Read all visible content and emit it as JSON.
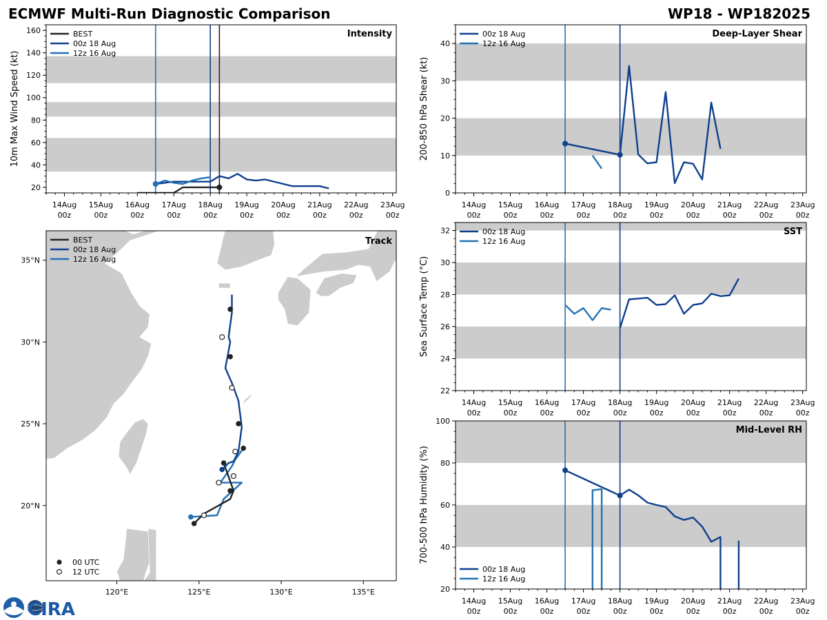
{
  "header": {
    "title_left": "ECMWF Multi-Run Diagnostic Comparison",
    "title_right": "WP18 - WP182025"
  },
  "logo": {
    "text": "CIRA",
    "emblem": "noaa-seal"
  },
  "colors": {
    "BEST": "#222222",
    "00z 18 Aug": "#0d3f8c",
    "12z 16 Aug": "#2171b5",
    "band": "#cccccc",
    "land": "#cccccc"
  },
  "time_axis": {
    "xlim": [
      -0.5,
      9.1
    ],
    "ticks": [
      {
        "x": 0,
        "line1": "14Aug",
        "line2": "00z"
      },
      {
        "x": 1,
        "line1": "15Aug",
        "line2": "00z"
      },
      {
        "x": 2,
        "line1": "16Aug",
        "line2": "00z"
      },
      {
        "x": 3,
        "line1": "17Aug",
        "line2": "00z"
      },
      {
        "x": 4,
        "line1": "18Aug",
        "line2": "00z"
      },
      {
        "x": 5,
        "line1": "19Aug",
        "line2": "00z"
      },
      {
        "x": 6,
        "line1": "20Aug",
        "line2": "00z"
      },
      {
        "x": 7,
        "line1": "21Aug",
        "line2": "00z"
      },
      {
        "x": 8,
        "line1": "22Aug",
        "line2": "00z"
      },
      {
        "x": 9,
        "line1": "23Aug",
        "line2": "00z"
      }
    ]
  },
  "chart_data": [
    {
      "id": "intensity",
      "type": "line",
      "title": "Intensity",
      "ylabel": "10m Max Wind Speed (kt)",
      "ylim": [
        15,
        165
      ],
      "yticks": [
        20,
        40,
        60,
        80,
        100,
        120,
        140,
        160
      ],
      "bands": [
        [
          34,
          64
        ],
        [
          83,
          96
        ],
        [
          113,
          137
        ]
      ],
      "vlines": [
        {
          "series": "12z 16 Aug",
          "x": 2.5
        },
        {
          "series": "00z 18 Aug",
          "x": 4.0
        },
        {
          "series": "BEST",
          "x": 4.25
        }
      ],
      "legend": [
        "BEST",
        "00z 18 Aug",
        "12z 16 Aug"
      ],
      "series": [
        {
          "name": "BEST",
          "x": [
            2.0,
            3.0,
            3.25,
            4.25
          ],
          "y": [
            15,
            15,
            20,
            20
          ],
          "marker_end": true
        },
        {
          "name": "00z 18 Aug",
          "x": [
            2.5,
            3.0,
            3.5,
            4.0,
            4.25,
            4.5,
            4.75,
            5.0,
            5.25,
            5.5,
            6.0,
            6.25,
            6.5,
            7.0,
            7.25
          ],
          "y": [
            23,
            25,
            25,
            25,
            30,
            28,
            32,
            27,
            26,
            27,
            23,
            21,
            21,
            21,
            19
          ],
          "marker_start": true
        },
        {
          "name": "12z 16 Aug",
          "x": [
            2.5,
            2.75,
            3.0,
            3.25,
            3.5,
            3.75,
            4.0
          ],
          "y": [
            23,
            26,
            24,
            23,
            26,
            28,
            29
          ],
          "marker_start": true
        }
      ]
    },
    {
      "id": "shear",
      "type": "line",
      "title": "Deep-Layer Shear",
      "ylabel": "200-850 hPa Shear (kt)",
      "ylim": [
        0,
        45
      ],
      "yticks": [
        0,
        10,
        20,
        30,
        40
      ],
      "bands": [
        [
          10,
          20
        ],
        [
          30,
          40
        ]
      ],
      "vlines": [
        {
          "series": "12z 16 Aug",
          "x": 2.5
        },
        {
          "series": "00z 18 Aug",
          "x": 4.0
        }
      ],
      "legend": [
        "00z 18 Aug",
        "12z 16 Aug"
      ],
      "series": [
        {
          "name": "00z 18 Aug",
          "x": [
            2.5,
            4.0,
            4.25,
            4.5,
            4.75,
            5.0,
            5.25,
            5.5,
            5.75,
            6.0,
            6.25,
            6.5,
            6.75
          ],
          "y": [
            13.2,
            10.2,
            34,
            10.3,
            7.9,
            8.2,
            27,
            2.6,
            8.2,
            7.8,
            3.6,
            24.2,
            11.8
          ],
          "marker_start": true,
          "marker_at": 4.0
        },
        {
          "name": "12z 16 Aug",
          "x": [
            3.25,
            3.5
          ],
          "y": [
            10,
            6.5
          ]
        }
      ]
    },
    {
      "id": "sst",
      "type": "line",
      "title": "SST",
      "ylabel": "Sea Surface Temp (°C)",
      "ylim": [
        22,
        32.5
      ],
      "yticks": [
        22,
        24,
        26,
        28,
        30,
        32
      ],
      "bands": [
        [
          24,
          26
        ],
        [
          28,
          30
        ],
        [
          32,
          32.5
        ]
      ],
      "vlines": [
        {
          "series": "12z 16 Aug",
          "x": 2.5
        },
        {
          "series": "00z 18 Aug",
          "x": 4.0
        }
      ],
      "legend": [
        "00z 18 Aug",
        "12z 16 Aug"
      ],
      "series": [
        {
          "name": "00z 18 Aug",
          "x": [
            4.0,
            4.25,
            4.5,
            4.75,
            5.0,
            5.25,
            5.5,
            5.75,
            6.0,
            6.25,
            6.5,
            6.75,
            7.0,
            7.25
          ],
          "y": [
            25.9,
            27.7,
            27.75,
            27.8,
            27.35,
            27.4,
            27.95,
            26.8,
            27.35,
            27.45,
            28.05,
            27.9,
            27.95,
            29.0
          ]
        },
        {
          "name": "12z 16 Aug",
          "x": [
            2.5,
            2.75,
            3.0,
            3.25,
            3.5,
            3.75
          ],
          "y": [
            27.35,
            26.8,
            27.15,
            26.4,
            27.15,
            27.05
          ]
        }
      ]
    },
    {
      "id": "rh",
      "type": "line",
      "title": "Mid-Level RH",
      "ylabel": "700-500 hPa Humidity (%)",
      "ylim": [
        20,
        100
      ],
      "yticks": [
        20,
        40,
        60,
        80,
        100
      ],
      "bands": [
        [
          40,
          60
        ],
        [
          80,
          100
        ]
      ],
      "vlines": [
        {
          "series": "12z 16 Aug",
          "x": 2.5
        },
        {
          "series": "00z 18 Aug",
          "x": 4.0
        }
      ],
      "legend": [
        "00z 18 Aug",
        "12z 16 Aug"
      ],
      "series": [
        {
          "name": "00z 18 Aug",
          "x": [
            2.5,
            4.0,
            4.25,
            4.5,
            4.75,
            5.0,
            5.25,
            5.5,
            5.75,
            6.0,
            6.25,
            6.5,
            6.75,
            6.75,
            null,
            7.25,
            7.25
          ],
          "y": [
            76.5,
            64.5,
            67.3,
            64.6,
            61.1,
            60,
            59,
            54.6,
            52.9,
            54,
            49.7,
            42.5,
            44.8,
            20,
            null,
            43,
            20
          ],
          "marker_start": true,
          "marker_at": 4.0
        },
        {
          "name": "12z 16 Aug",
          "x": [
            3.25,
            3.25,
            3.5,
            3.5
          ],
          "y": [
            20,
            67,
            67.5,
            20
          ]
        }
      ]
    },
    {
      "id": "track",
      "type": "scatter",
      "title": "Track",
      "lon_range": [
        115.7,
        137.0
      ],
      "lat_range": [
        15.4,
        36.8
      ],
      "lon_ticks": [
        {
          "v": 120,
          "label": "120°E"
        },
        {
          "v": 125,
          "label": "125°E"
        },
        {
          "v": 130,
          "label": "130°E"
        },
        {
          "v": 135,
          "label": "135°E"
        }
      ],
      "lat_ticks": [
        {
          "v": 20,
          "label": "20°N"
        },
        {
          "v": 25,
          "label": "25°N"
        },
        {
          "v": 30,
          "label": "30°N"
        },
        {
          "v": 35,
          "label": "35°N"
        }
      ],
      "legend": [
        "BEST",
        "00z 18 Aug",
        "12z 16 Aug"
      ],
      "marker_legend": [
        "00 UTC",
        "12 UTC"
      ],
      "series": [
        {
          "name": "BEST",
          "lon": [
            124.7,
            125.3,
            126.9,
            127.1,
            126.5
          ],
          "lat": [
            18.9,
            19.5,
            20.4,
            20.9,
            22.6
          ],
          "markers_00": [
            [
              124.7,
              18.9
            ],
            [
              126.9,
              20.9
            ],
            [
              126.5,
              22.6
            ]
          ],
          "markers_12": [
            [
              125.3,
              19.4
            ],
            [
              127.1,
              21.8
            ]
          ]
        },
        {
          "name": "00z 18 Aug",
          "lon": [
            126.4,
            126.8,
            127.1,
            127.4,
            127.6,
            127.4,
            127.0,
            126.6,
            126.9,
            126.8,
            127.0,
            127.0
          ],
          "lat": [
            22.2,
            22.6,
            22.7,
            23.3,
            24.8,
            26.4,
            27.5,
            28.4,
            30.0,
            30.3,
            31.8,
            32.9
          ],
          "markers_00": [
            [
              126.4,
              22.2
            ]
          ]
        },
        {
          "name": "12z 16 Aug",
          "lon": [
            124.5,
            126.1,
            126.5,
            127.6,
            126.3,
            127.0,
            127.2,
            127.7
          ],
          "lat": [
            19.3,
            19.4,
            20.4,
            21.4,
            21.4,
            22.4,
            22.8,
            23.5
          ],
          "markers_00": [
            [
              124.5,
              19.3
            ],
            [
              127.7,
              23.5
            ],
            [
              127.4,
              25.0
            ],
            [
              126.9,
              29.1
            ],
            [
              126.9,
              32.0
            ]
          ],
          "markers_12": [
            [
              126.2,
              21.4
            ],
            [
              127.2,
              23.3
            ],
            [
              127.0,
              27.2
            ],
            [
              126.4,
              30.3
            ]
          ]
        }
      ]
    }
  ]
}
